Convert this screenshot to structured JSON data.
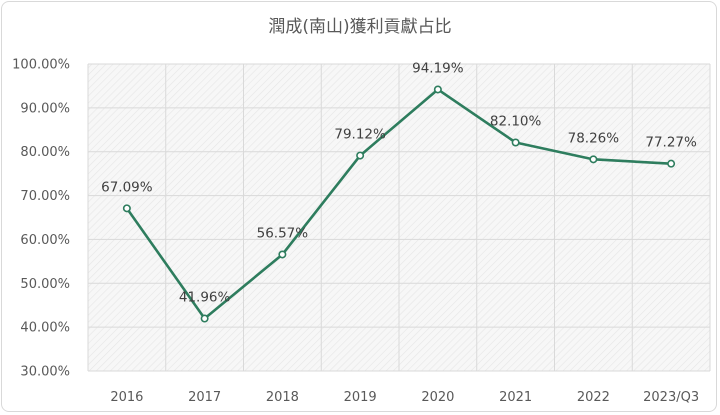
{
  "chart_data": {
    "type": "line",
    "title": "潤成(南山)獲利貢獻占比",
    "categories": [
      "2016",
      "2017",
      "2018",
      "2019",
      "2020",
      "2021",
      "2022",
      "2023/Q3"
    ],
    "series": [
      {
        "values": [
          67.09,
          41.96,
          56.57,
          79.12,
          94.19,
          82.1,
          78.26,
          77.27
        ],
        "labels": [
          "67.09%",
          "41.96%",
          "56.57%",
          "79.12%",
          "94.19%",
          "82.10%",
          "78.26%",
          "77.27%"
        ],
        "color": "#2e7d5e"
      }
    ],
    "y_ticks": [
      "30.00%",
      "40.00%",
      "50.00%",
      "60.00%",
      "70.00%",
      "80.00%",
      "90.00%",
      "100.00%"
    ],
    "ylim": [
      30,
      100
    ],
    "xlabel": "",
    "ylabel": "",
    "grid": true,
    "legend": "none",
    "plot_background": "hatched light gray"
  }
}
